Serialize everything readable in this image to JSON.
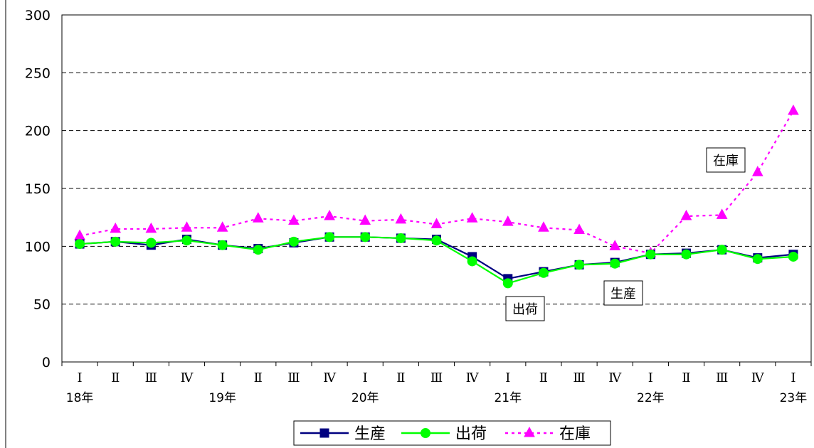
{
  "chart_data": {
    "type": "line",
    "title": "",
    "xlabel": "",
    "ylabel": "",
    "ylim": [
      0,
      300
    ],
    "yticks": [
      "0",
      "50",
      "100",
      "150",
      "200",
      "250",
      "300"
    ],
    "grid": "horizontal dashed",
    "legend_position": "bottom",
    "categories": [
      "Ⅰ",
      "Ⅱ",
      "Ⅲ",
      "Ⅳ",
      "Ⅰ",
      "Ⅱ",
      "Ⅲ",
      "Ⅳ",
      "Ⅰ",
      "Ⅱ",
      "Ⅲ",
      "Ⅳ",
      "Ⅰ",
      "Ⅱ",
      "Ⅲ",
      "Ⅳ",
      "Ⅰ",
      "Ⅱ",
      "Ⅲ",
      "Ⅳ",
      "Ⅰ"
    ],
    "year_labels": [
      {
        "index": 0,
        "text": "18年"
      },
      {
        "index": 4,
        "text": "19年"
      },
      {
        "index": 8,
        "text": "20年"
      },
      {
        "index": 12,
        "text": "21年"
      },
      {
        "index": 16,
        "text": "22年"
      },
      {
        "index": 20,
        "text": "23年"
      }
    ],
    "series": [
      {
        "name": "生産",
        "color": "#000080",
        "marker": "square",
        "dash": "solid",
        "values": [
          102,
          104,
          101,
          106,
          101,
          98,
          103,
          108,
          108,
          107,
          106,
          91,
          72,
          78,
          84,
          86,
          93,
          94,
          97,
          90,
          93
        ]
      },
      {
        "name": "出荷",
        "color": "#00ff00",
        "marker": "circle",
        "dash": "solid",
        "values": [
          102,
          104,
          103,
          105,
          101,
          97,
          104,
          108,
          108,
          107,
          105,
          87,
          68,
          77,
          84,
          85,
          93,
          93,
          97,
          89,
          91
        ]
      },
      {
        "name": "在庫",
        "color": "#ff00ff",
        "marker": "triangle",
        "dash": "dotted",
        "values": [
          109,
          115,
          115,
          116,
          116,
          124,
          122,
          126,
          122,
          123,
          119,
          124,
          121,
          116,
          114,
          100,
          94,
          126,
          127,
          164,
          217
        ]
      }
    ],
    "annotations": [
      {
        "text": "在庫",
        "series": "在庫",
        "near_index": 19
      },
      {
        "text": "出荷",
        "series": "出荷",
        "near_index": 12
      },
      {
        "text": "生産",
        "series": "生産",
        "near_index": 15
      }
    ]
  }
}
